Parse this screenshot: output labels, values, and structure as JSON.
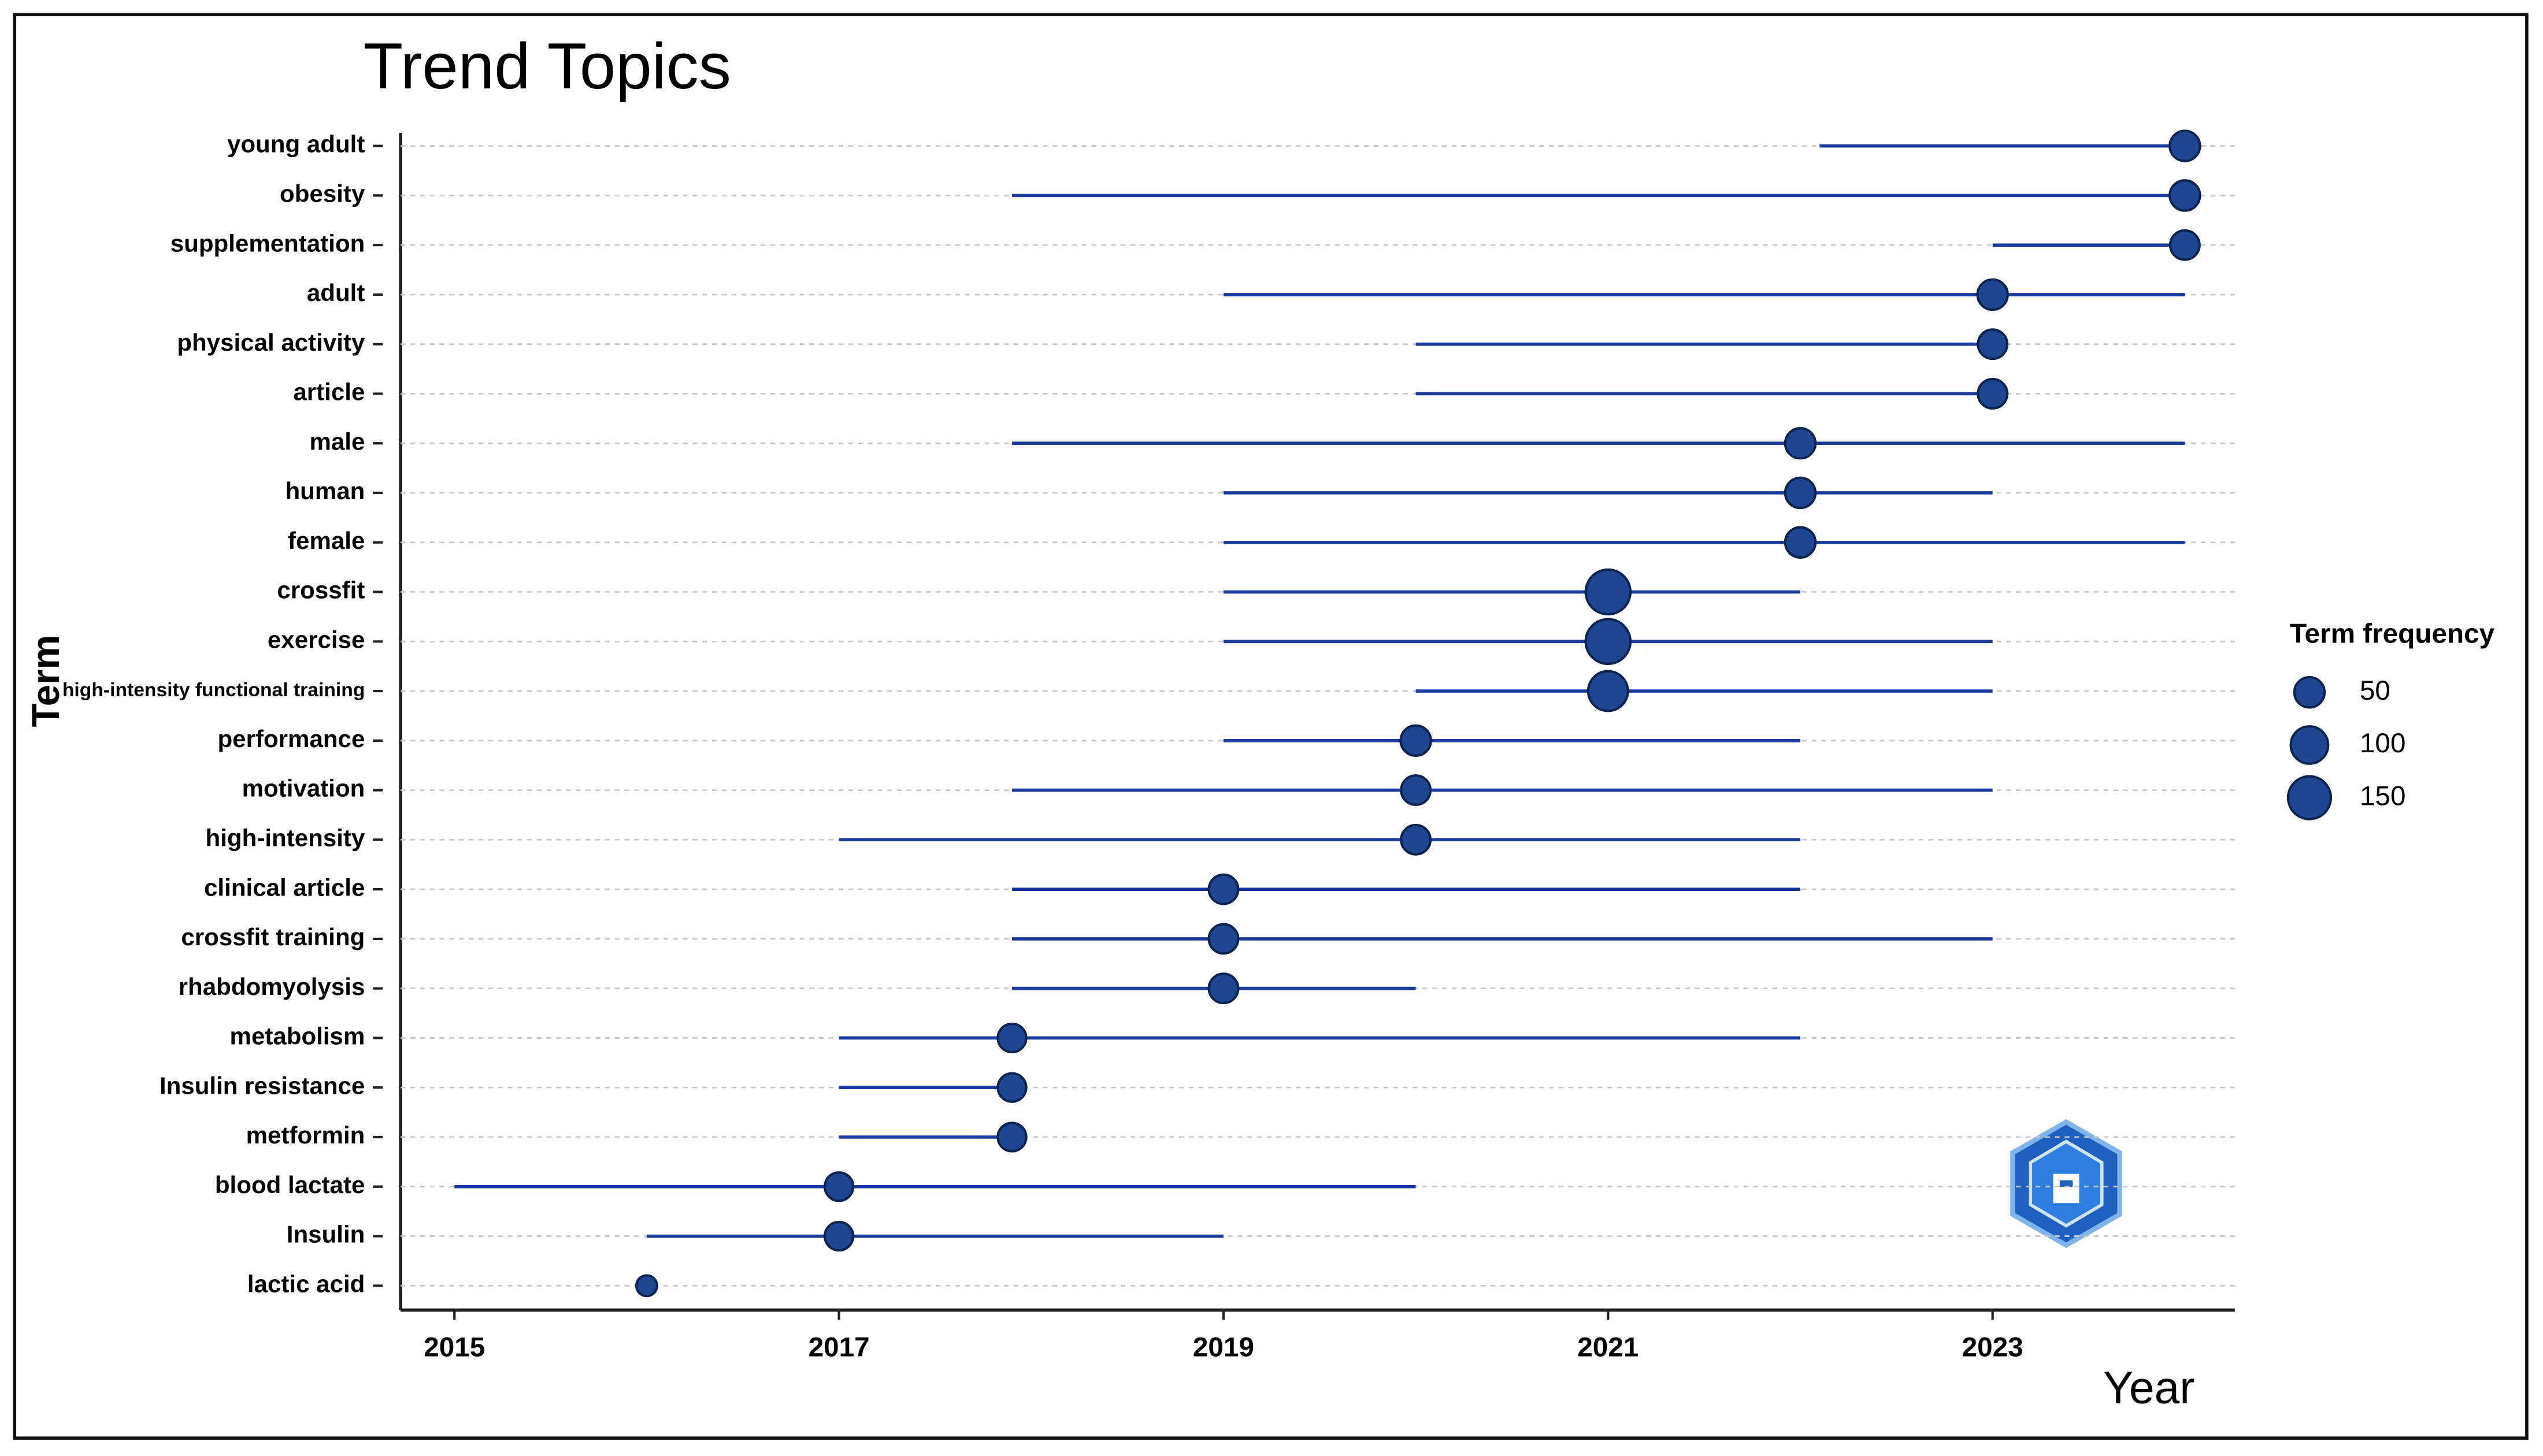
{
  "chart_data": {
    "type": "trend",
    "title": "Trend Topics",
    "xlabel": "Year",
    "ylabel": "Term",
    "categories": [
      "young adult",
      "obesity",
      "supplementation",
      "adult",
      "physical activity",
      "article",
      "male",
      "human",
      "female",
      "crossfit",
      "exercise",
      "high-intensity functional training",
      "performance",
      "motivation",
      "high-intensity",
      "clinical article",
      "crossfit training",
      "rhabdomyolysis",
      "metabolism",
      "Insulin resistance",
      "metformin",
      "blood lactate",
      "Insulin",
      "lactic acid"
    ],
    "start": [
      2022.1,
      2017.9,
      2023,
      2019,
      2020,
      2020,
      2017.9,
      2019,
      2019,
      2019,
      2019,
      2020,
      2019,
      2017.9,
      2017,
      2017.9,
      2017.9,
      2017.9,
      2017,
      2017,
      2017,
      2015,
      2016,
      2016
    ],
    "median": [
      2024,
      2024,
      2024,
      2023,
      2023,
      2023,
      2022,
      2022,
      2022,
      2021,
      2021,
      2021,
      2020,
      2020,
      2020,
      2019,
      2019,
      2019,
      2017.9,
      2017.9,
      2017.9,
      2017,
      2017,
      2016
    ],
    "end": [
      2024,
      2024,
      2024,
      2024,
      2023,
      2023,
      2024,
      2023,
      2024,
      2022,
      2023,
      2023,
      2022,
      2023,
      2022,
      2022,
      2023,
      2020,
      2022,
      2017.9,
      2017.9,
      2020,
      2019,
      2016
    ],
    "frequency": [
      50,
      50,
      45,
      50,
      45,
      45,
      50,
      50,
      50,
      170,
      170,
      120,
      50,
      45,
      45,
      45,
      45,
      45,
      40,
      40,
      40,
      40,
      40,
      10
    ],
    "color": "#1f4690",
    "line_color": "#1a3a9c",
    "xlim": [
      2014.72,
      2024.26
    ],
    "xticks": [
      2015,
      2017,
      2019,
      2021,
      2023
    ],
    "grid": true,
    "size_legend": {
      "title": "Term frequency",
      "values": [
        50,
        100,
        150
      ]
    }
  }
}
